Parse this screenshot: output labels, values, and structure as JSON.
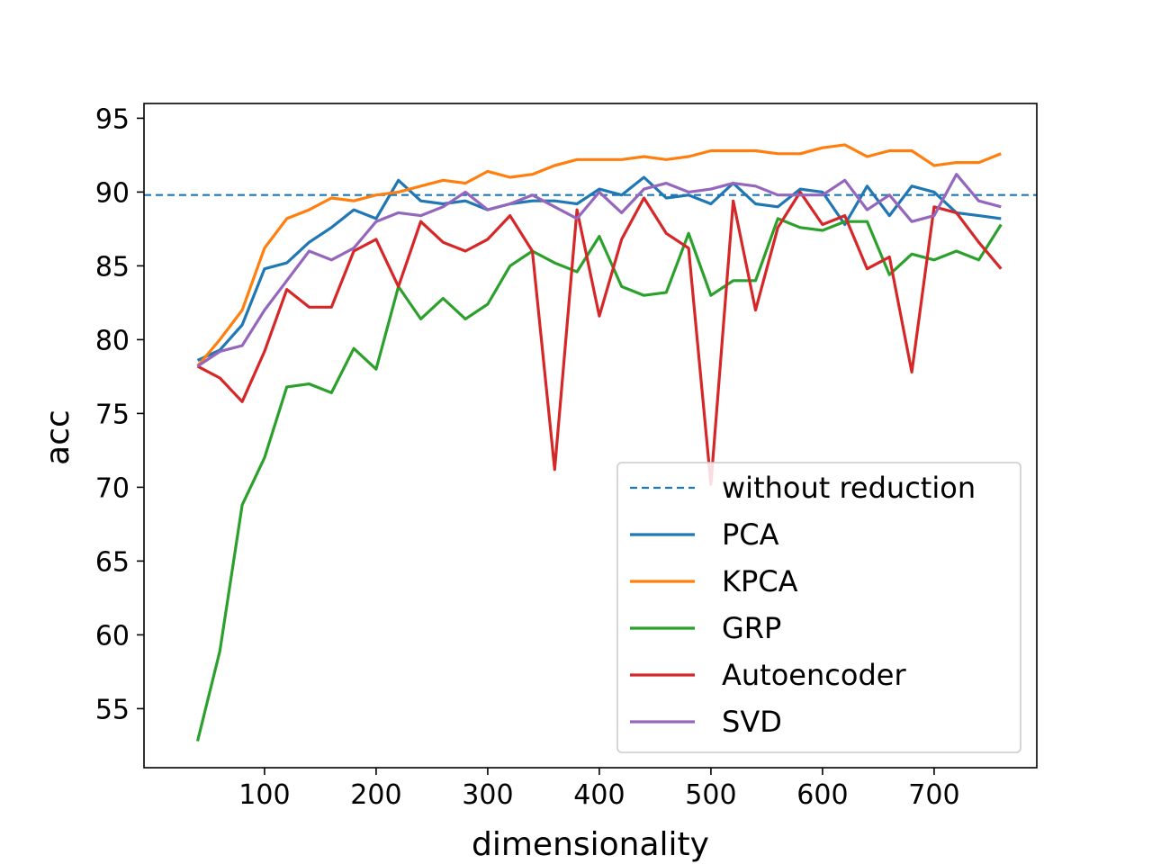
{
  "chart_data": {
    "type": "line",
    "xlabel": "dimensionality",
    "ylabel": "acc",
    "xlim": [
      -8,
      792
    ],
    "ylim": [
      51,
      96
    ],
    "xticks": [
      100,
      200,
      300,
      400,
      500,
      600,
      700
    ],
    "yticks": [
      55,
      60,
      65,
      70,
      75,
      80,
      85,
      90,
      95
    ],
    "grid": false,
    "legend_position": "lower-right",
    "x": [
      40,
      60,
      80,
      100,
      120,
      140,
      160,
      180,
      200,
      220,
      240,
      260,
      280,
      300,
      320,
      340,
      360,
      380,
      400,
      420,
      440,
      460,
      480,
      500,
      520,
      540,
      560,
      580,
      600,
      620,
      640,
      660,
      680,
      700,
      720,
      740,
      760
    ],
    "baseline": {
      "name": "without reduction",
      "value": 89.8,
      "color": "#1f77b4"
    },
    "series": [
      {
        "name": "PCA",
        "color": "#1f77b4",
        "values": [
          78.6,
          79.3,
          81.0,
          84.8,
          85.2,
          86.6,
          87.6,
          88.8,
          88.2,
          90.8,
          89.4,
          89.2,
          89.4,
          88.8,
          89.2,
          89.4,
          89.4,
          89.2,
          90.2,
          89.8,
          91.0,
          89.6,
          89.8,
          89.2,
          90.6,
          89.2,
          89.0,
          90.2,
          90.0,
          87.8,
          90.4,
          88.4,
          90.4,
          90.0,
          88.6,
          88.4,
          88.2
        ]
      },
      {
        "name": "KPCA",
        "color": "#ff7f0e",
        "values": [
          78.2,
          80.0,
          82.0,
          86.2,
          88.2,
          88.8,
          89.6,
          89.4,
          89.8,
          90.0,
          90.4,
          90.8,
          90.6,
          91.4,
          91.0,
          91.2,
          91.8,
          92.2,
          92.2,
          92.2,
          92.4,
          92.2,
          92.4,
          92.8,
          92.8,
          92.8,
          92.6,
          92.6,
          93.0,
          93.2,
          92.4,
          92.8,
          92.8,
          91.8,
          92.0,
          92.0,
          92.6
        ]
      },
      {
        "name": "GRP",
        "color": "#2ca02c",
        "values": [
          52.8,
          58.9,
          68.8,
          72.0,
          76.8,
          77.0,
          76.4,
          79.4,
          78.0,
          83.6,
          81.4,
          82.8,
          81.4,
          82.4,
          85.0,
          86.0,
          85.2,
          84.6,
          87.0,
          83.6,
          83.0,
          83.2,
          87.2,
          83.0,
          84.0,
          84.0,
          88.2,
          87.6,
          87.4,
          88.0,
          88.0,
          84.4,
          85.8,
          85.4,
          86.0,
          85.4,
          87.8
        ]
      },
      {
        "name": "Autoencoder",
        "color": "#d62728",
        "values": [
          78.2,
          77.4,
          75.8,
          79.2,
          83.4,
          82.2,
          82.2,
          86.0,
          86.8,
          83.6,
          88.0,
          86.6,
          86.0,
          86.8,
          88.4,
          86.0,
          71.2,
          88.8,
          81.6,
          86.8,
          89.6,
          87.2,
          86.2,
          70.2,
          89.4,
          82.0,
          87.6,
          90.0,
          87.8,
          88.4,
          84.8,
          85.6,
          77.8,
          89.0,
          88.6,
          86.6,
          84.8
        ]
      },
      {
        "name": "SVD",
        "color": "#9467bd",
        "values": [
          78.2,
          79.2,
          79.6,
          82.0,
          84.0,
          86.0,
          85.4,
          86.2,
          88.0,
          88.6,
          88.4,
          89.0,
          90.0,
          88.8,
          89.2,
          89.8,
          89.0,
          88.2,
          90.0,
          88.6,
          90.2,
          90.6,
          90.0,
          90.2,
          90.6,
          90.4,
          89.8,
          89.8,
          89.8,
          90.8,
          88.8,
          89.8,
          88.0,
          88.4,
          91.2,
          89.4,
          89.0
        ]
      }
    ]
  }
}
